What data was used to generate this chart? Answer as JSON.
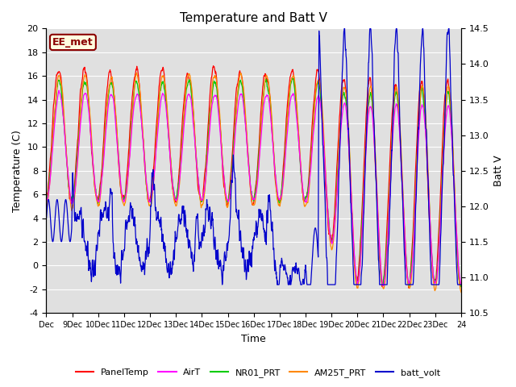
{
  "title": "Temperature and Batt V",
  "xlabel": "Time",
  "ylabel_left": "Temperature (C)",
  "ylabel_right": "Batt V",
  "watermark": "EE_met",
  "ylim_left": [
    -4,
    20
  ],
  "ylim_right": [
    10.5,
    14.5
  ],
  "yticks_left": [
    -4,
    -2,
    0,
    2,
    4,
    6,
    8,
    10,
    12,
    14,
    16,
    18,
    20
  ],
  "yticks_right": [
    10.5,
    11.0,
    11.5,
    12.0,
    12.5,
    13.0,
    13.5,
    14.0,
    14.5
  ],
  "n_days": 16,
  "xtick_labels": [
    "Dec",
    "9Dec",
    "10Dec",
    "11Dec",
    "12Dec",
    "13Dec",
    "14Dec",
    "15Dec",
    "16Dec",
    "17Dec",
    "18Dec",
    "19Dec",
    "20Dec",
    "21Dec",
    "22Dec",
    "23Dec",
    "24"
  ],
  "bg_color": "#e0e0e0",
  "grid_color": "#ffffff",
  "series": [
    {
      "name": "PanelTemp",
      "color": "#ff0000"
    },
    {
      "name": "AirT",
      "color": "#ff00ff"
    },
    {
      "name": "NR01_PRT",
      "color": "#00cc00"
    },
    {
      "name": "AM25T_PRT",
      "color": "#ff8800"
    },
    {
      "name": "batt_volt",
      "color": "#0000cc"
    }
  ],
  "figsize": [
    6.4,
    4.8
  ],
  "dpi": 100
}
